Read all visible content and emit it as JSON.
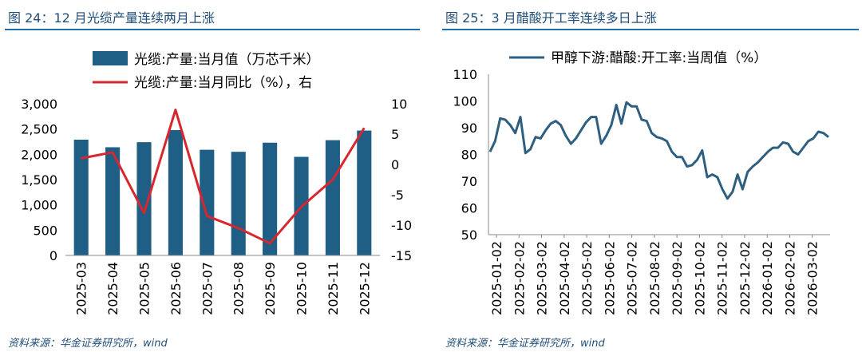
{
  "left": {
    "title": "图 24：12 月光缆产量连续两月上涨",
    "source": "资料来源：华金证券研究所，wind"
  },
  "right": {
    "title": "图 25：3 月醋酸开工率连续多日上涨",
    "source": "资料来源：华金证券研究所，wind"
  },
  "chart_data": [
    {
      "type": "bar",
      "title": "",
      "categories": [
        "2025-03",
        "2025-04",
        "2025-05",
        "2025-06",
        "2025-07",
        "2025-08",
        "2025-09",
        "2025-10",
        "2025-11",
        "2025-12"
      ],
      "series": [
        {
          "name": "光缆:产量:当月值（万芯千米）",
          "type": "bar",
          "axis": "left",
          "color": "#1f5f86",
          "values": [
            2290,
            2140,
            2240,
            2480,
            2090,
            2050,
            2230,
            1950,
            2280,
            2470
          ]
        },
        {
          "name": "光缆:产量:当月同比（%），右",
          "type": "line",
          "axis": "right",
          "color": "#d7262e",
          "values": [
            1,
            2,
            -8,
            9,
            -8.5,
            -10.5,
            -13,
            -7,
            -2.5,
            6
          ]
        }
      ],
      "yleft": {
        "lim": [
          0,
          3000
        ],
        "ticks": [
          0,
          500,
          1000,
          1500,
          2000,
          2500,
          3000
        ],
        "tick_labels": [
          "0",
          "500",
          "1,000",
          "1,500",
          "2,000",
          "2,500",
          "3,000"
        ]
      },
      "yright": {
        "lim": [
          -15,
          10
        ],
        "ticks": [
          -15,
          -10,
          -5,
          0,
          5,
          10
        ],
        "tick_labels": [
          "-15",
          "-10",
          "-5",
          "0",
          "5",
          "10"
        ]
      },
      "legend": "top"
    },
    {
      "type": "line",
      "title": "",
      "series": [
        {
          "name": "甲醇下游:醋酸:开工率:当周值（%）",
          "color": "#2f5f80",
          "values": [
            81,
            85,
            93.5,
            93,
            91,
            88,
            94,
            80.5,
            82,
            86.5,
            86,
            89,
            91.5,
            92.5,
            91,
            87,
            84,
            86,
            89,
            92,
            94,
            94,
            84,
            87,
            91,
            98.5,
            91.5,
            99.5,
            98,
            98,
            93,
            92.5,
            88,
            86.5,
            86,
            85,
            81,
            79,
            79,
            75.5,
            76,
            78,
            81.5,
            71.5,
            72.5,
            71.5,
            67,
            63.5,
            66,
            72.5,
            67,
            73.5,
            75.5,
            77,
            79,
            81,
            82.5,
            82.5,
            84.5,
            84,
            81,
            80,
            82.5,
            85,
            86,
            88.5,
            88,
            86.5
          ]
        }
      ],
      "x_tick_labels": [
        "2025-01-02",
        "2025-02-02",
        "2025-03-02",
        "2025-04-02",
        "2025-05-02",
        "2025-06-02",
        "2025-07-02",
        "2025-08-02",
        "2025-09-02",
        "2025-10-02",
        "2025-11-02",
        "2025-12-02",
        "2026-01-02",
        "2026-02-02",
        "2026-03-02"
      ],
      "ylim": [
        50,
        110
      ],
      "y_ticks": [
        50,
        60,
        70,
        80,
        90,
        100,
        110
      ],
      "legend": "top"
    }
  ]
}
